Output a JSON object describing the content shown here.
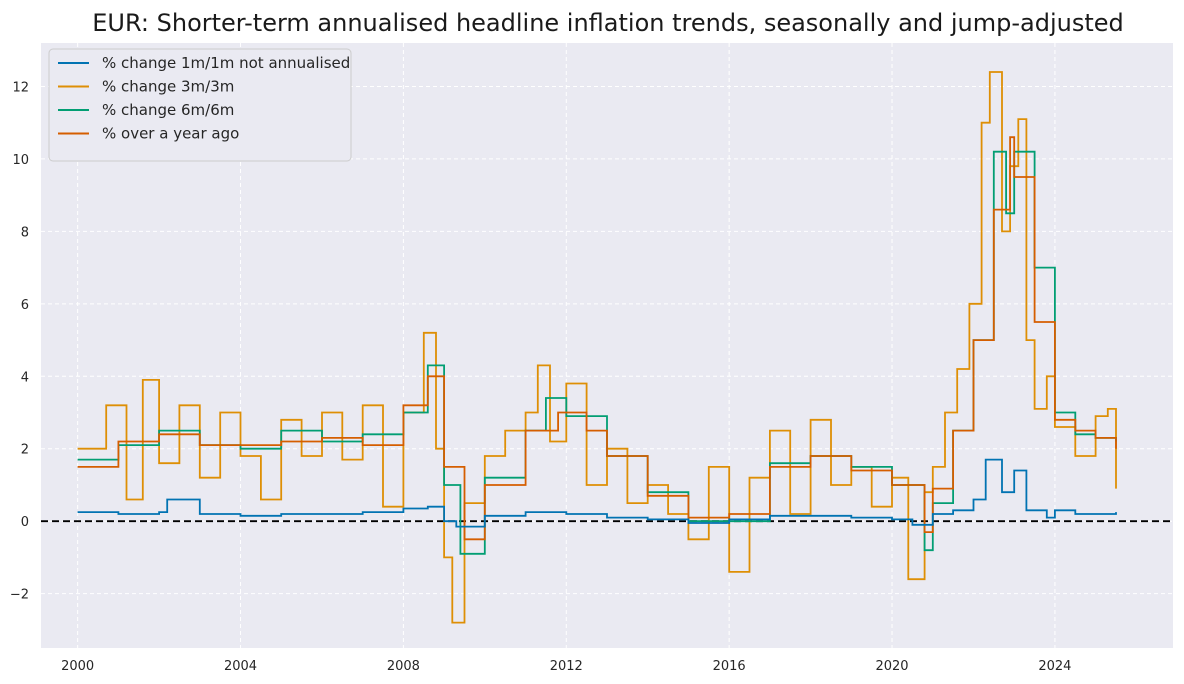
{
  "chart_data": {
    "type": "line",
    "title": "EUR: Shorter-term annualised headline inflation trends, seasonally and jump-adjusted",
    "xlabel": "",
    "ylabel": "",
    "xlim": [
      1999.1,
      2026.9
    ],
    "ylim": [
      -3.5,
      13.2
    ],
    "x_ticks": [
      2000,
      2004,
      2008,
      2012,
      2016,
      2020,
      2024
    ],
    "x_tick_labels": [
      "2000",
      "2004",
      "2008",
      "2012",
      "2016",
      "2020",
      "2024"
    ],
    "y_ticks": [
      -2,
      0,
      2,
      4,
      6,
      8,
      10,
      12
    ],
    "y_tick_labels": [
      "−2",
      "0",
      "2",
      "4",
      "6",
      "8",
      "10",
      "12"
    ],
    "grid": true,
    "background": "#eaeaf2",
    "legend_position": "upper-left",
    "reference_line": {
      "y": 0,
      "style": "dashed",
      "color": "#000000"
    },
    "step": true,
    "series": [
      {
        "name": "% change 1m/1m not annualised",
        "color": "#0173b2",
        "points": [
          [
            2000.0,
            0.25
          ],
          [
            2001.0,
            0.2
          ],
          [
            2002.0,
            0.25
          ],
          [
            2002.2,
            0.6
          ],
          [
            2003.0,
            0.2
          ],
          [
            2004.0,
            0.15
          ],
          [
            2005.0,
            0.2
          ],
          [
            2006.0,
            0.2
          ],
          [
            2007.0,
            0.25
          ],
          [
            2008.0,
            0.35
          ],
          [
            2008.6,
            0.4
          ],
          [
            2009.0,
            0.0
          ],
          [
            2009.3,
            -0.15
          ],
          [
            2010.0,
            0.15
          ],
          [
            2011.0,
            0.25
          ],
          [
            2012.0,
            0.2
          ],
          [
            2013.0,
            0.1
          ],
          [
            2014.0,
            0.05
          ],
          [
            2015.0,
            -0.05
          ],
          [
            2016.0,
            0.05
          ],
          [
            2017.0,
            0.15
          ],
          [
            2018.0,
            0.15
          ],
          [
            2019.0,
            0.1
          ],
          [
            2020.0,
            0.05
          ],
          [
            2020.5,
            -0.1
          ],
          [
            2021.0,
            0.2
          ],
          [
            2021.5,
            0.3
          ],
          [
            2022.0,
            0.6
          ],
          [
            2022.3,
            1.7
          ],
          [
            2022.7,
            0.8
          ],
          [
            2023.0,
            1.4
          ],
          [
            2023.3,
            0.3
          ],
          [
            2023.8,
            0.1
          ],
          [
            2024.0,
            0.3
          ],
          [
            2024.5,
            0.2
          ],
          [
            2025.0,
            0.2
          ],
          [
            2025.5,
            0.25
          ]
        ]
      },
      {
        "name": "% change 3m/3m",
        "color": "#de8f05",
        "points": [
          [
            2000.0,
            2.0
          ],
          [
            2000.7,
            3.2
          ],
          [
            2001.2,
            0.6
          ],
          [
            2001.6,
            3.9
          ],
          [
            2002.0,
            1.6
          ],
          [
            2002.5,
            3.2
          ],
          [
            2003.0,
            1.2
          ],
          [
            2003.5,
            3.0
          ],
          [
            2004.0,
            1.8
          ],
          [
            2004.5,
            0.6
          ],
          [
            2005.0,
            2.8
          ],
          [
            2005.5,
            1.8
          ],
          [
            2006.0,
            3.0
          ],
          [
            2006.5,
            1.7
          ],
          [
            2007.0,
            3.2
          ],
          [
            2007.5,
            0.4
          ],
          [
            2008.0,
            3.0
          ],
          [
            2008.5,
            5.2
          ],
          [
            2008.8,
            2.0
          ],
          [
            2009.0,
            -1.0
          ],
          [
            2009.2,
            -2.8
          ],
          [
            2009.5,
            0.5
          ],
          [
            2010.0,
            1.8
          ],
          [
            2010.5,
            2.5
          ],
          [
            2011.0,
            3.0
          ],
          [
            2011.3,
            4.3
          ],
          [
            2011.6,
            2.2
          ],
          [
            2012.0,
            3.8
          ],
          [
            2012.5,
            1.0
          ],
          [
            2013.0,
            2.0
          ],
          [
            2013.5,
            0.5
          ],
          [
            2014.0,
            1.0
          ],
          [
            2014.5,
            0.2
          ],
          [
            2015.0,
            -0.5
          ],
          [
            2015.5,
            1.5
          ],
          [
            2016.0,
            -1.4
          ],
          [
            2016.5,
            1.2
          ],
          [
            2017.0,
            2.5
          ],
          [
            2017.5,
            0.2
          ],
          [
            2018.0,
            2.8
          ],
          [
            2018.5,
            1.0
          ],
          [
            2019.0,
            1.5
          ],
          [
            2019.5,
            0.4
          ],
          [
            2020.0,
            1.2
          ],
          [
            2020.4,
            -1.6
          ],
          [
            2020.8,
            0.8
          ],
          [
            2021.0,
            1.5
          ],
          [
            2021.3,
            3.0
          ],
          [
            2021.6,
            4.2
          ],
          [
            2021.9,
            6.0
          ],
          [
            2022.2,
            11.0
          ],
          [
            2022.4,
            12.4
          ],
          [
            2022.7,
            8.0
          ],
          [
            2022.9,
            9.8
          ],
          [
            2023.1,
            11.1
          ],
          [
            2023.3,
            5.0
          ],
          [
            2023.5,
            3.1
          ],
          [
            2023.8,
            4.0
          ],
          [
            2024.0,
            2.6
          ],
          [
            2024.5,
            1.8
          ],
          [
            2025.0,
            2.9
          ],
          [
            2025.3,
            3.1
          ],
          [
            2025.5,
            0.9
          ]
        ]
      },
      {
        "name": "% change 6m/6m",
        "color": "#029e73",
        "points": [
          [
            2000.0,
            1.7
          ],
          [
            2001.0,
            2.1
          ],
          [
            2002.0,
            2.5
          ],
          [
            2003.0,
            2.1
          ],
          [
            2004.0,
            2.0
          ],
          [
            2005.0,
            2.5
          ],
          [
            2006.0,
            2.2
          ],
          [
            2007.0,
            2.4
          ],
          [
            2008.0,
            3.0
          ],
          [
            2008.6,
            4.3
          ],
          [
            2009.0,
            1.0
          ],
          [
            2009.4,
            -0.9
          ],
          [
            2010.0,
            1.2
          ],
          [
            2011.0,
            2.5
          ],
          [
            2011.5,
            3.4
          ],
          [
            2012.0,
            2.9
          ],
          [
            2013.0,
            1.8
          ],
          [
            2014.0,
            0.8
          ],
          [
            2015.0,
            0.0
          ],
          [
            2016.0,
            0.0
          ],
          [
            2017.0,
            1.6
          ],
          [
            2018.0,
            1.8
          ],
          [
            2019.0,
            1.5
          ],
          [
            2020.0,
            1.0
          ],
          [
            2020.8,
            -0.8
          ],
          [
            2021.0,
            0.5
          ],
          [
            2021.5,
            2.5
          ],
          [
            2022.0,
            5.0
          ],
          [
            2022.5,
            10.2
          ],
          [
            2022.8,
            8.5
          ],
          [
            2023.0,
            10.2
          ],
          [
            2023.5,
            7.0
          ],
          [
            2024.0,
            3.0
          ],
          [
            2024.5,
            2.4
          ],
          [
            2025.0,
            2.3
          ],
          [
            2025.5,
            2.2
          ]
        ]
      },
      {
        "name": "% over a year ago",
        "color": "#d55e00",
        "points": [
          [
            2000.0,
            1.5
          ],
          [
            2001.0,
            2.2
          ],
          [
            2002.0,
            2.4
          ],
          [
            2003.0,
            2.1
          ],
          [
            2004.0,
            2.1
          ],
          [
            2005.0,
            2.2
          ],
          [
            2006.0,
            2.3
          ],
          [
            2007.0,
            2.1
          ],
          [
            2008.0,
            3.2
          ],
          [
            2008.6,
            4.0
          ],
          [
            2009.0,
            1.5
          ],
          [
            2009.5,
            -0.5
          ],
          [
            2010.0,
            1.0
          ],
          [
            2011.0,
            2.5
          ],
          [
            2011.8,
            3.0
          ],
          [
            2012.5,
            2.5
          ],
          [
            2013.0,
            1.8
          ],
          [
            2014.0,
            0.7
          ],
          [
            2015.0,
            0.1
          ],
          [
            2016.0,
            0.2
          ],
          [
            2017.0,
            1.5
          ],
          [
            2018.0,
            1.8
          ],
          [
            2019.0,
            1.4
          ],
          [
            2020.0,
            1.0
          ],
          [
            2020.8,
            -0.3
          ],
          [
            2021.0,
            0.9
          ],
          [
            2021.5,
            2.5
          ],
          [
            2022.0,
            5.0
          ],
          [
            2022.5,
            8.6
          ],
          [
            2022.9,
            10.6
          ],
          [
            2023.0,
            9.5
          ],
          [
            2023.5,
            5.5
          ],
          [
            2024.0,
            2.8
          ],
          [
            2024.5,
            2.5
          ],
          [
            2025.0,
            2.3
          ],
          [
            2025.5,
            2.0
          ]
        ]
      }
    ]
  }
}
